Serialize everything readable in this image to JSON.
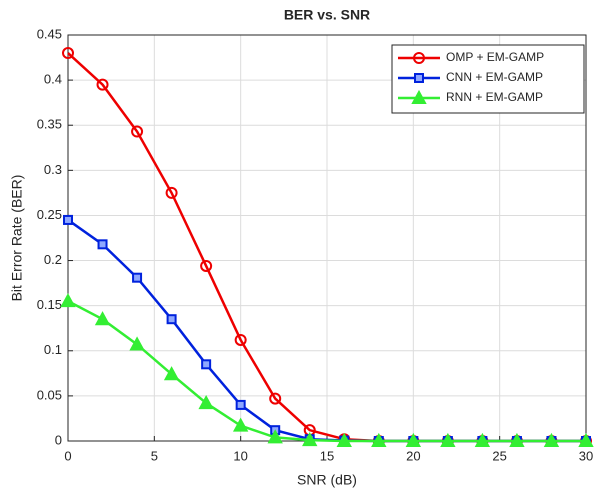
{
  "chart_data": {
    "type": "line",
    "title": "BER vs. SNR",
    "x_label": "SNR (dB)",
    "y_label": "Bit Error Rate (BER)",
    "x": [
      0,
      2,
      4,
      6,
      8,
      10,
      12,
      14,
      16,
      18,
      20,
      22,
      24,
      26,
      28,
      30
    ],
    "series": [
      {
        "name": "OMP + EM-GAMP",
        "color": "#ee0000",
        "marker": "circle",
        "values": [
          0.43,
          0.395,
          0.343,
          0.275,
          0.194,
          0.112,
          0.047,
          0.012,
          0.002,
          0,
          0,
          0,
          0,
          0,
          0,
          0
        ]
      },
      {
        "name": "CNN + EM-GAMP",
        "color": "#0022dd",
        "marker": "square",
        "values": [
          0.245,
          0.218,
          0.181,
          0.135,
          0.085,
          0.04,
          0.012,
          0.002,
          0.0005,
          0,
          0,
          0,
          0,
          0,
          0,
          0
        ]
      },
      {
        "name": "RNN + EM-GAMP",
        "color": "#33ee33",
        "marker": "triangle",
        "values": [
          0.155,
          0.135,
          0.107,
          0.074,
          0.042,
          0.017,
          0.004,
          0.001,
          0,
          0,
          0,
          0,
          0,
          0,
          0,
          0
        ]
      }
    ],
    "xlim": [
      0,
      30
    ],
    "ylim": [
      0,
      0.45
    ],
    "xticks": [
      0,
      5,
      10,
      15,
      20,
      25,
      30
    ],
    "yticks": [
      0,
      0.05,
      0.1,
      0.15,
      0.2,
      0.25,
      0.3,
      0.35,
      0.4,
      0.45
    ],
    "grid": true,
    "legend_position": "top-right"
  }
}
